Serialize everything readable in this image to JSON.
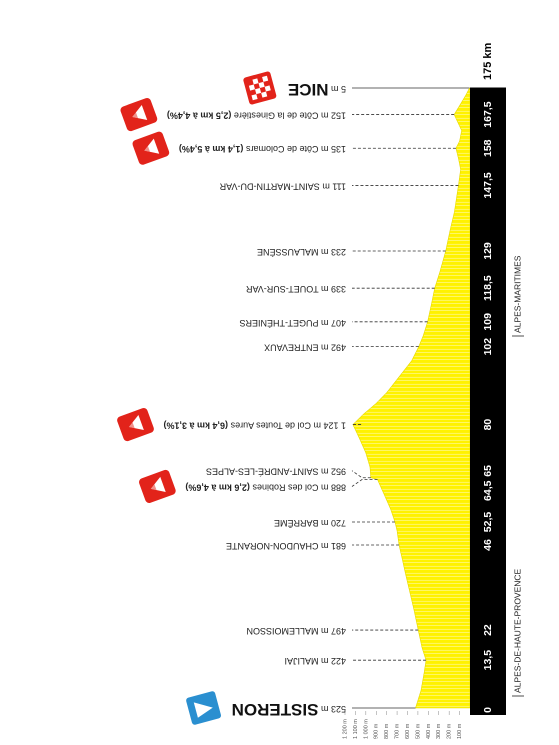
{
  "chart_data": {
    "type": "area",
    "color": "#fff200",
    "xlim": [
      0,
      175
    ],
    "ylim": [
      0,
      1200
    ],
    "xticks": [
      0,
      {
        "value": 13.5,
        "label": "13,5"
      },
      22,
      46,
      {
        "value": 52.5,
        "label": "52,5"
      },
      {
        "value": 64.5,
        "label": "64,5"
      },
      65,
      80,
      102,
      109,
      {
        "value": 118.5,
        "label": "118,5"
      },
      129,
      {
        "value": 147.5,
        "label": "147,5"
      },
      158,
      {
        "value": 167.5,
        "label": "167,5"
      },
      {
        "value": 175,
        "label": "175 km"
      }
    ],
    "yticks": [
      {
        "value": 1200,
        "label": "1 200 m"
      },
      {
        "value": 1100,
        "label": "1 100 m"
      },
      {
        "value": 1000,
        "label": "1 000 m"
      },
      {
        "value": 900,
        "label": "900 m"
      },
      {
        "value": 800,
        "label": "800 m"
      },
      {
        "value": 700,
        "label": "700 m"
      },
      {
        "value": 600,
        "label": "600 m"
      },
      {
        "value": 500,
        "label": "500 m"
      },
      {
        "value": 400,
        "label": "400 m"
      },
      {
        "value": 300,
        "label": "300 m"
      },
      {
        "value": 200,
        "label": "200 m"
      },
      {
        "value": 100,
        "label": "100 m"
      }
    ],
    "profile": {
      "x": [
        0,
        5,
        10,
        13.5,
        17,
        22,
        28,
        33,
        38,
        42,
        46,
        50,
        52.5,
        56,
        60,
        64.5,
        65,
        68,
        72,
        76,
        80,
        83,
        86,
        89,
        92,
        95,
        98,
        102,
        105,
        109,
        114,
        118.5,
        123,
        129,
        135,
        140,
        147.5,
        152,
        155,
        158,
        160,
        163,
        167.5,
        170,
        173,
        175
      ],
      "values": [
        523,
        470,
        440,
        422,
        460,
        497,
        540,
        580,
        620,
        650,
        681,
        700,
        720,
        760,
        820,
        888,
        952,
        960,
        1000,
        1060,
        1124,
        1020,
        900,
        800,
        720,
        640,
        560,
        492,
        450,
        407,
        370,
        339,
        290,
        233,
        190,
        150,
        111,
        90,
        110,
        135,
        100,
        80,
        152,
        100,
        40,
        5
      ]
    },
    "waypoints": {
      "values": [
        523,
        422,
        497,
        681,
        720,
        888,
        952,
        1124,
        492,
        407,
        339,
        233,
        111,
        135,
        152,
        5
      ],
      "value_labels": [
        "523 m",
        "422 m",
        "497 m",
        "681 m",
        "720 m",
        "888 m",
        "952 m",
        "1 124 m",
        "492 m",
        "407 m",
        "339 m",
        "233 m",
        "111 m",
        "135 m",
        "152 m",
        "5 m"
      ],
      "names": [
        "SISTERON",
        "MALIJAI",
        "MALLEMOISSON",
        "CHAUDON-NORANTE",
        "BARRÊME",
        "Col des Robines",
        "SAINT-ANDRÉ-LES-ALPES",
        "Col de Toutes Aures",
        "ENTREVAUX",
        "PUGET-THÉNIERS",
        "TOUET-SUR-VAR",
        "MALAUSSÈNE",
        "SAINT-MARTIN-DU-VAR",
        "Côte de Colomars",
        "Côte de la Ginestière",
        "NICE"
      ],
      "notes": [
        null,
        null,
        null,
        null,
        null,
        "(2,6 km à 4,6%)",
        null,
        "(6,4 km à 3,1%)",
        null,
        null,
        null,
        null,
        null,
        "(1,4 km à 5,4%)",
        "(2,5 km à 4,4%)",
        null
      ]
    },
    "region_labels": [
      "ALPES-DE-HAUTE-PROVENCE",
      "ALPES-MARITIMES"
    ]
  }
}
